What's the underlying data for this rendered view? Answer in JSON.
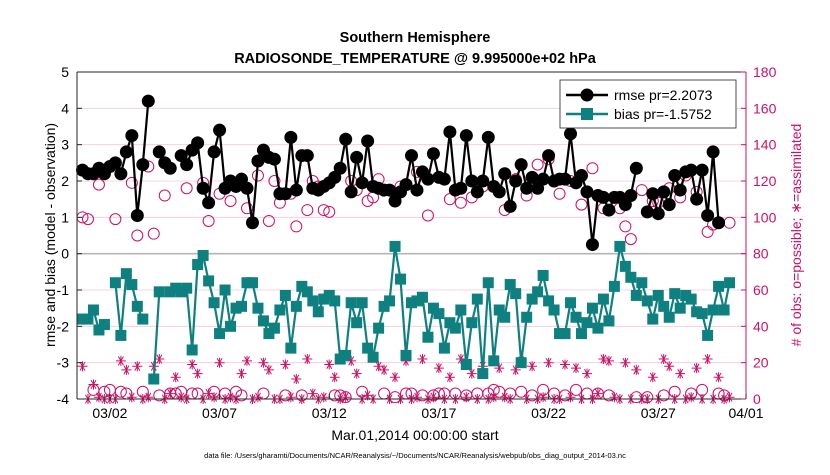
{
  "chart_data": {
    "type": "line",
    "title": "Southern Hemisphere",
    "subtitle": "RADIOSONDE_TEMPERATURE @ 9.995000e+02 hPa",
    "xlabel": "Mar.01,2014 00:00:00 start",
    "ylabel": "rmse and bias (model - observation)",
    "y2label": "# of obs: o=possible; ∗=assimilated",
    "footnote": "data file: /Users/gharamti/Documents/NCAR/Reanalysis/~/Documents/NCAR/Reanalysis/webpub/obs_diag_output_2014-03.nc",
    "xlim": [
      0.5,
      31.0
    ],
    "ylim": [
      -4,
      5
    ],
    "y2lim": [
      0,
      180
    ],
    "xticks": [
      {
        "value": 2,
        "label": "03/02"
      },
      {
        "value": 7,
        "label": "03/07"
      },
      {
        "value": 12,
        "label": "03/12"
      },
      {
        "value": 17,
        "label": "03/17"
      },
      {
        "value": 22,
        "label": "03/22"
      },
      {
        "value": 27,
        "label": "03/27"
      },
      {
        "value": 32,
        "label": "04/01"
      }
    ],
    "yticks": [
      {
        "value": -4,
        "label": "-4"
      },
      {
        "value": -3,
        "label": "-3"
      },
      {
        "value": -2,
        "label": "-2"
      },
      {
        "value": -1,
        "label": "-1"
      },
      {
        "value": 0,
        "label": "0"
      },
      {
        "value": 1,
        "label": "1"
      },
      {
        "value": 2,
        "label": "2"
      },
      {
        "value": 3,
        "label": "3"
      },
      {
        "value": 4,
        "label": "4"
      },
      {
        "value": 5,
        "label": "5"
      }
    ],
    "y2ticks": [
      {
        "value": 0,
        "label": "0"
      },
      {
        "value": 20,
        "label": "20"
      },
      {
        "value": 40,
        "label": "40"
      },
      {
        "value": 60,
        "label": "60"
      },
      {
        "value": 80,
        "label": "80"
      },
      {
        "value": 100,
        "label": "100"
      },
      {
        "value": 120,
        "label": "120"
      },
      {
        "value": 140,
        "label": "140"
      },
      {
        "value": 160,
        "label": "160"
      },
      {
        "value": 180,
        "label": "180"
      }
    ],
    "x_start": 0.75,
    "x_step": 0.25,
    "legend": {
      "location": "top-right",
      "entries": [
        {
          "label": "rmse pr=2.2073",
          "series": "rmse"
        },
        {
          "label": "bias pr=-1.5752",
          "series": "bias"
        }
      ]
    },
    "series": [
      {
        "name": "rmse",
        "axis": "left",
        "color": "#000000",
        "marker": "filled-circle",
        "values": [
          2.3,
          2.2,
          2.2,
          2.35,
          2.2,
          2.4,
          2.5,
          2.2,
          2.8,
          3.25,
          1.05,
          2.45,
          4.2,
          null,
          2.8,
          2.5,
          2.35,
          null,
          2.7,
          2.45,
          2.85,
          3.05,
          1.8,
          1.4,
          2.8,
          3.4,
          1.8,
          2.0,
          1.85,
          2.05,
          1.8,
          0.85,
          2.55,
          2.85,
          2.65,
          2.6,
          1.65,
          1.65,
          3.2,
          1.75,
          2.7,
          2.7,
          1.8,
          1.75,
          1.85,
          1.95,
          2.1,
          2.35,
          3.15,
          1.7,
          2.65,
          1.95,
          3.1,
          1.85,
          1.8,
          1.75,
          1.75,
          1.45,
          1.7,
          1.9,
          2.7,
          1.75,
          2.25,
          2.05,
          2.75,
          2.1,
          2.05,
          3.35,
          1.75,
          1.8,
          3.25,
          2.0,
          1.7,
          2.0,
          3.2,
          1.85,
          1.7,
          2.2,
          1.3,
          2.0,
          2.45,
          1.8,
          2.1,
          1.8,
          2.05,
          2.7,
          2.0,
          2.05,
          2.05,
          3.3,
          1.95,
          2.15,
          1.7,
          0.25,
          1.6,
          1.55,
          1.2,
          1.55,
          1.55,
          1.35,
          1.6,
          2.35,
          null,
          1.15,
          1.65,
          1.1,
          1.7,
          1.35,
          2.15,
          1.75,
          2.25,
          2.3,
          1.5,
          2.3,
          1.05,
          2.8,
          0.85
        ]
      },
      {
        "name": "bias",
        "axis": "left",
        "color": "#0f8080",
        "marker": "filled-square",
        "values": [
          -1.8,
          -1.8,
          -1.55,
          -2.1,
          -1.95,
          null,
          -0.8,
          -2.25,
          -0.55,
          -0.85,
          -1.45,
          -1.8,
          null,
          -3.45,
          -1.05,
          null,
          -1.05,
          -0.95,
          -1.05,
          -0.95,
          -2.65,
          -0.3,
          -0.05,
          -0.75,
          -1.35,
          -2.2,
          -1.0,
          -2.0,
          -1.5,
          -1.45,
          -0.8,
          -0.8,
          -1.5,
          -1.85,
          -2.2,
          -2.05,
          -1.55,
          -1.15,
          -2.6,
          -1.45,
          -0.9,
          -1.05,
          -1.3,
          -1.6,
          -1.25,
          -1.15,
          -1.3,
          -2.9,
          -2.8,
          -1.35,
          -1.9,
          -1.35,
          -2.6,
          -2.85,
          -2.05,
          -1.45,
          -1.3,
          0.2,
          -0.7,
          -2.8,
          -1.35,
          -1.3,
          -1.2,
          -2.3,
          -1.5,
          -1.65,
          -2.6,
          -1.9,
          -2.05,
          -1.55,
          -3.05,
          -1.9,
          -1.25,
          -3.3,
          -0.8,
          -2.95,
          -1.55,
          -1.75,
          -0.85,
          -1.1,
          -3.0,
          -1.75,
          -1.25,
          -1.05,
          -0.6,
          -1.3,
          -1.55,
          -2.2,
          -2.2,
          -1.35,
          -1.75,
          -2.2,
          -1.9,
          -1.5,
          -2.05,
          -1.25,
          -1.85,
          -0.9,
          0.2,
          -0.35,
          -0.65,
          -1.15,
          -0.8,
          -1.3,
          -1.8,
          -1.15,
          -1.45,
          -1.75,
          -1.1,
          -1.5,
          -1.15,
          -1.25,
          -1.6,
          -1.65,
          -2.25,
          -1.55,
          -0.9,
          -1.55,
          -0.8
        ]
      },
      {
        "name": "obs possible",
        "axis": "right",
        "color": "#cc1166",
        "marker": "open-circle",
        "values": [
          100,
          99,
          5,
          118,
          4,
          5,
          99,
          4,
          3,
          119,
          90,
          4,
          128,
          91,
          2,
          112,
          3,
          3,
          4,
          116,
          3,
          3,
          119,
          98,
          4,
          113,
          3,
          109,
          4,
          2,
          105,
          97,
          123,
          3,
          98,
          120,
          108,
          2,
          113,
          95,
          2,
          104,
          120,
          117,
          104,
          103,
          2,
          2,
          1,
          120,
          115,
          4,
          109,
          111,
          121,
          3,
          115,
          1,
          117,
          3,
          3,
          125,
          2,
          101,
          2,
          3,
          3,
          110,
          3,
          108,
          2,
          111,
          3,
          117,
          3,
          5,
          4,
          104,
          3,
          121,
          4,
          112,
          2,
          129,
          5,
          132,
          3,
          113,
          2,
          120,
          5,
          107,
          3,
          127,
          3,
          105,
          2,
          111,
          105,
          95,
          88,
          1,
          115,
          1,
          109,
          108,
          2,
          116,
          4,
          111,
          123,
          3,
          114,
          5,
          92,
          96,
          3,
          2,
          97
        ]
      },
      {
        "name": "obs assimilated",
        "axis": "right",
        "color": "#cc1166",
        "marker": "asterisk",
        "values": [
          18,
          0,
          8,
          1,
          0,
          0,
          0,
          21,
          16,
          1,
          18,
          0,
          1,
          18,
          22,
          0,
          3,
          12,
          1,
          0,
          19,
          14,
          0,
          3,
          1,
          20,
          0,
          1,
          0,
          14,
          21,
          0,
          1,
          20,
          16,
          0,
          0,
          19,
          1,
          11,
          0,
          22,
          3,
          0,
          1,
          19,
          12,
          0,
          1,
          21,
          14,
          0,
          2,
          0,
          18,
          16,
          0,
          12,
          0,
          21,
          0,
          1,
          22,
          0,
          1,
          17,
          0,
          12,
          0,
          22,
          1,
          14,
          0,
          18,
          0,
          1,
          17,
          1,
          0,
          16,
          21,
          0,
          18,
          0,
          1,
          20,
          0,
          0,
          19,
          1,
          17,
          0,
          14,
          0,
          3,
          22,
          21,
          1,
          0,
          20,
          0,
          16,
          0,
          0,
          12,
          0,
          22,
          18,
          0,
          14,
          0,
          1,
          17,
          0,
          22,
          0,
          12,
          0,
          1
        ]
      }
    ]
  }
}
